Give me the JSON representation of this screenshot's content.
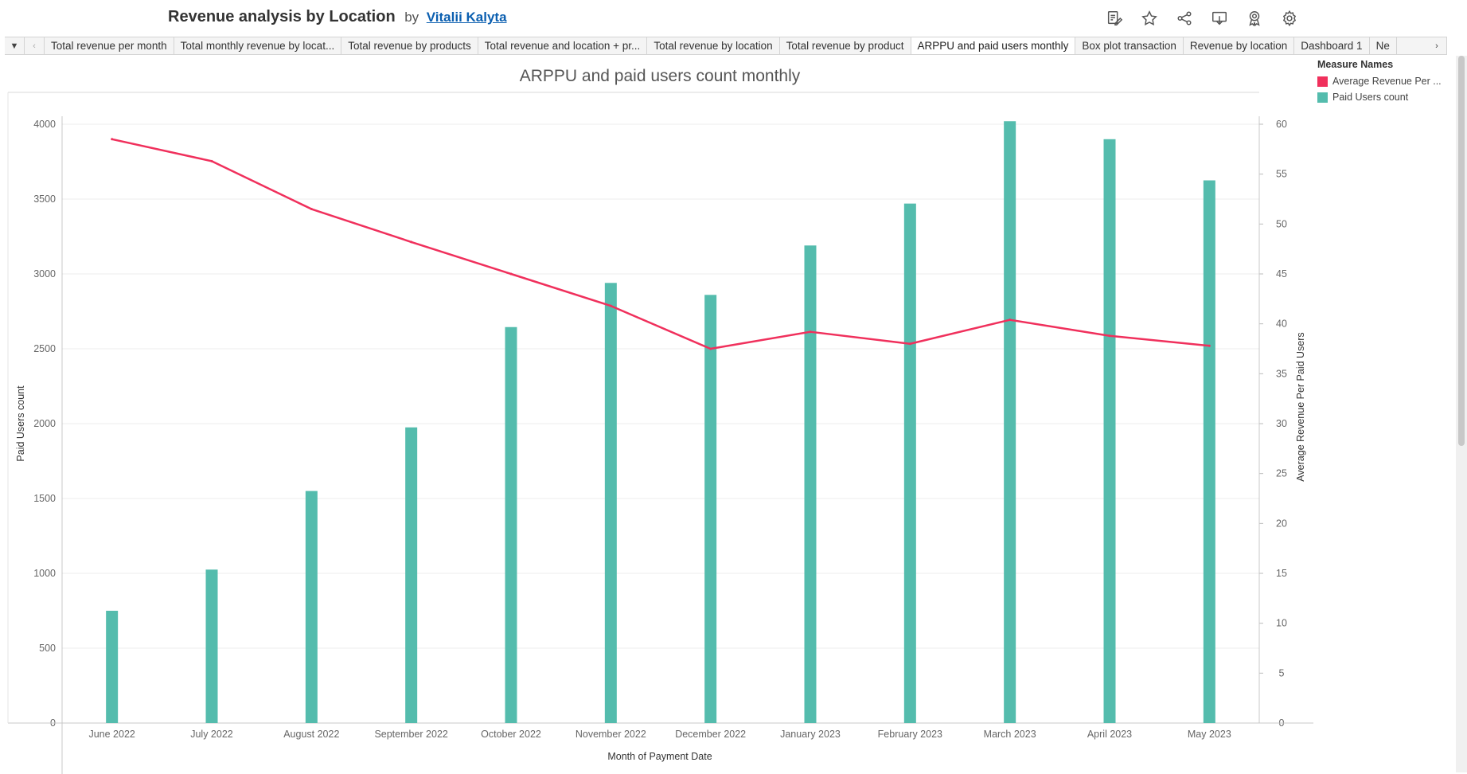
{
  "header": {
    "title": "Revenue analysis by Location",
    "by": "by",
    "author": "Vitalii Kalyta",
    "toolbar_icons": [
      "edit-icon",
      "star-icon",
      "share-icon",
      "download-icon",
      "metrics-icon",
      "settings-icon"
    ]
  },
  "tabs": {
    "items": [
      {
        "label": "Total revenue per month"
      },
      {
        "label": "Total monthly revenue by locat..."
      },
      {
        "label": "Total revenue by products"
      },
      {
        "label": "Total revenue and location + pr..."
      },
      {
        "label": "Total revenue by location"
      },
      {
        "label": "Total revenue by product"
      },
      {
        "label": "ARPPU and paid users monthly",
        "active": true
      },
      {
        "label": "Box plot transaction"
      },
      {
        "label": "Revenue by location"
      },
      {
        "label": "Dashboard 1"
      },
      {
        "label": "Ne"
      }
    ]
  },
  "legend": {
    "title": "Measure Names",
    "items": [
      {
        "label": "Average Revenue Per ...",
        "color": "#f0305c"
      },
      {
        "label": "Paid Users count",
        "color": "#54bcad"
      }
    ]
  },
  "colors": {
    "bar": "#54bcad",
    "line": "#f0305c"
  },
  "chart_data": {
    "type": "bar+line",
    "title": "ARPPU and paid users count monthly",
    "xlabel": "Month of Payment Date",
    "ylabel": "Paid Users count",
    "y2label": "Average Revenue Per Paid Users",
    "categories": [
      "June 2022",
      "July 2022",
      "August 2022",
      "September 2022",
      "October 2022",
      "November 2022",
      "December 2022",
      "January 2023",
      "February 2023",
      "March 2023",
      "April 2023",
      "May 2023"
    ],
    "ylim": [
      0,
      4000
    ],
    "yticks": [
      0,
      500,
      1000,
      1500,
      2000,
      2500,
      3000,
      3500,
      4000
    ],
    "y2lim": [
      0,
      60
    ],
    "y2ticks": [
      0,
      5,
      10,
      15,
      20,
      25,
      30,
      35,
      40,
      45,
      50,
      55,
      60
    ],
    "grid": true,
    "series": [
      {
        "name": "Paid Users count",
        "type": "bar",
        "axis": "left",
        "values": [
          750,
          1025,
          1550,
          1975,
          2645,
          2940,
          2860,
          3190,
          3470,
          4020,
          3900,
          3625
        ]
      },
      {
        "name": "Average Revenue Per Paid Users",
        "type": "line",
        "axis": "right",
        "values": [
          58.5,
          56.3,
          51.5,
          48.2,
          45.0,
          41.8,
          37.5,
          39.2,
          38.0,
          40.4,
          38.8,
          37.8
        ]
      }
    ]
  }
}
